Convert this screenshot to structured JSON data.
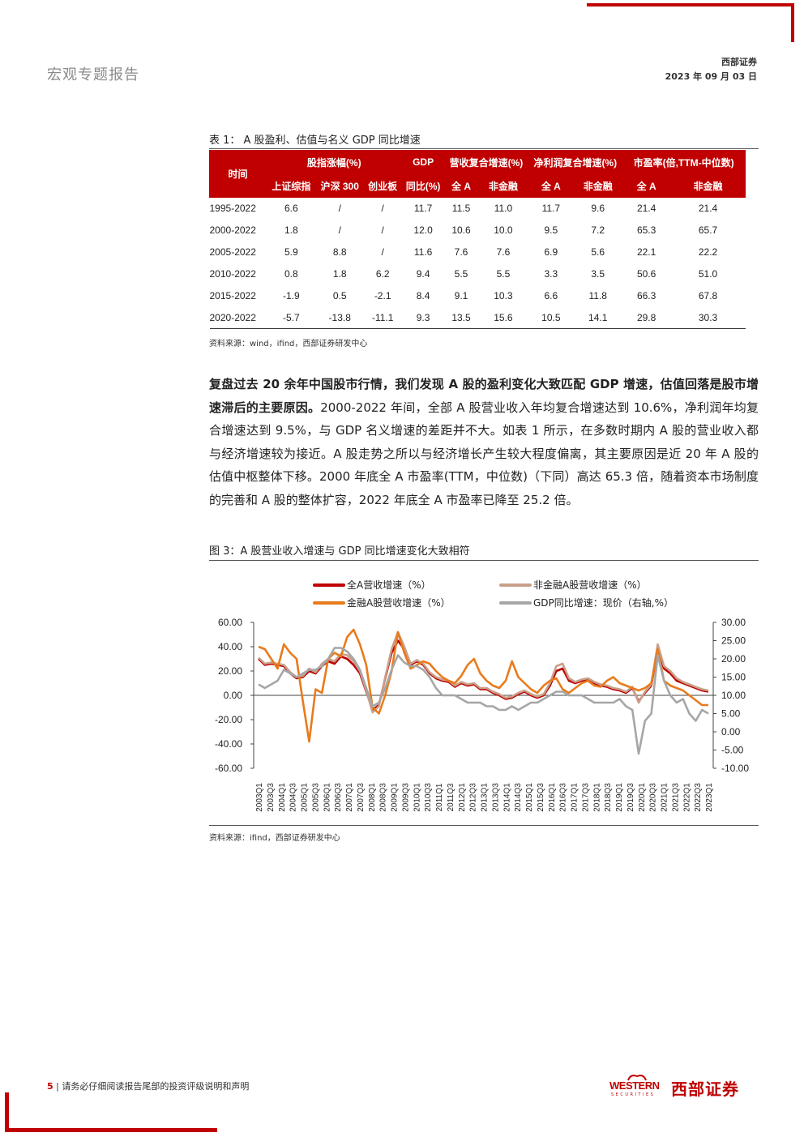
{
  "header": {
    "report_type": "宏观专题报告",
    "company": "西部证券",
    "date": "2023 年 09 月 03 日"
  },
  "table1": {
    "caption": "表 1：  A 股盈利、估值与名义 GDP 同比增速",
    "header_time": "时间",
    "group_headers": [
      "股指涨幅(%)",
      "GDP",
      "营收复合增速(%)",
      "净利润复合增速(%)",
      "市盈率(倍,TTM-中位数)"
    ],
    "sub_headers": [
      "上证综指",
      "沪深 300",
      "创业板",
      "同比(%)",
      "全 A",
      "非金融",
      "全 A",
      "非金融",
      "全 A",
      "非金融"
    ],
    "rows": [
      [
        "1995-2022",
        "6.6",
        "/",
        "/",
        "11.7",
        "11.5",
        "11.0",
        "11.7",
        "9.6",
        "21.4",
        "21.4"
      ],
      [
        "2000-2022",
        "1.8",
        "/",
        "/",
        "12.0",
        "10.6",
        "10.0",
        "9.5",
        "7.2",
        "65.3",
        "65.7"
      ],
      [
        "2005-2022",
        "5.9",
        "8.8",
        "/",
        "11.6",
        "7.6",
        "7.6",
        "6.9",
        "5.6",
        "22.1",
        "22.2"
      ],
      [
        "2010-2022",
        "0.8",
        "1.8",
        "6.2",
        "9.4",
        "5.5",
        "5.5",
        "3.3",
        "3.5",
        "50.6",
        "51.0"
      ],
      [
        "2015-2022",
        "-1.9",
        "0.5",
        "-2.1",
        "8.4",
        "9.1",
        "10.3",
        "6.6",
        "11.8",
        "66.3",
        "67.8"
      ],
      [
        "2020-2022",
        "-5.7",
        "-13.8",
        "-11.1",
        "9.3",
        "13.5",
        "15.6",
        "10.5",
        "14.1",
        "29.8",
        "30.3"
      ]
    ],
    "source": "资料来源：wind，ifind，西部证券研发中心"
  },
  "paragraph": {
    "bold": "复盘过去 20 余年中国股市行情，我们发现 A 股的盈利变化大致匹配 GDP 增速，估值回落是股市增速滞后的主要原因。",
    "rest": "2000-2022 年间，全部 A 股营业收入年均复合增速达到 10.6%，净利润年均复合增速达到 9.5%，与 GDP 名义增速的差距并不大。如表 1 所示，在多数时期内 A 股的营业收入都与经济增速较为接近。A 股走势之所以与经济增长产生较大程度偏离，其主要原因是近 20 年 A 股的估值中枢整体下移。2000 年底全 A 市盈率(TTM，中位数)（下同）高达 65.3 倍，随着资本市场制度的完善和 A 股的整体扩容，2022 年底全 A 市盈率已降至 25.2 倍。"
  },
  "figure3": {
    "caption": "图 3：A 股营业收入增速与 GDP 同比增速变化大致相符",
    "source": "资料来源：ifind，西部证券研发中心"
  },
  "chart_data": {
    "type": "line",
    "legend_placement": "top",
    "grid": false,
    "y_left": {
      "min": -60,
      "max": 60,
      "ticks": [
        "60.00",
        "40.00",
        "20.00",
        "0.00",
        "-20.00",
        "-40.00",
        "-60.00"
      ]
    },
    "y_right": {
      "min": -10,
      "max": 30,
      "ticks": [
        "30.00",
        "25.00",
        "20.00",
        "15.00",
        "10.00",
        "5.00",
        "0.00",
        "-5.00",
        "-10.00"
      ]
    },
    "x_labels": [
      "2003Q1",
      "2003Q3",
      "2004Q1",
      "2004Q3",
      "2005Q1",
      "2005Q3",
      "2006Q1",
      "2006Q3",
      "2007Q1",
      "2007Q3",
      "2008Q1",
      "2008Q3",
      "2009Q1",
      "2009Q3",
      "2010Q1",
      "2010Q3",
      "2011Q1",
      "2011Q3",
      "2012Q1",
      "2012Q3",
      "2013Q1",
      "2013Q3",
      "2014Q1",
      "2014Q3",
      "2015Q1",
      "2015Q3",
      "2016Q1",
      "2016Q3",
      "2017Q1",
      "2017Q3",
      "2018Q1",
      "2018Q3",
      "2019Q1",
      "2019Q3",
      "2020Q1",
      "2020Q3",
      "2021Q1",
      "2021Q3",
      "2022Q1",
      "2022Q3",
      "2023Q1"
    ],
    "series": [
      {
        "name": "全A营收增速（%）",
        "axis": "left",
        "color": "#c00000",
        "width": 2.6,
        "values": [
          30,
          25,
          26,
          25,
          24,
          18,
          14,
          15,
          20,
          18,
          24,
          28,
          26,
          32,
          30,
          25,
          18,
          3,
          -12,
          -8,
          14,
          35,
          45,
          38,
          25,
          28,
          25,
          18,
          14,
          12,
          11,
          7,
          10,
          8,
          9,
          5,
          5,
          2,
          0,
          -3,
          -2,
          1,
          3,
          0,
          -2,
          0,
          8,
          20,
          22,
          12,
          10,
          12,
          13,
          10,
          8,
          7,
          5,
          4,
          2,
          6,
          -5,
          2,
          8,
          38,
          22,
          18,
          12,
          10,
          8,
          6,
          4,
          3
        ]
      },
      {
        "name": "非金融A股营收增速（%）",
        "axis": "left",
        "color": "#c8a08a",
        "width": 2.6,
        "values": [
          31,
          26,
          27,
          26,
          25,
          19,
          15,
          16,
          22,
          19,
          26,
          30,
          28,
          34,
          33,
          28,
          20,
          4,
          -14,
          -9,
          15,
          38,
          52,
          40,
          26,
          29,
          26,
          19,
          15,
          13,
          12,
          8,
          11,
          9,
          10,
          6,
          6,
          3,
          1,
          -2,
          -1,
          2,
          4,
          1,
          -1,
          1,
          10,
          24,
          26,
          14,
          11,
          13,
          14,
          11,
          9,
          8,
          6,
          5,
          3,
          7,
          -6,
          3,
          9,
          42,
          24,
          20,
          14,
          11,
          9,
          7,
          5,
          4
        ]
      },
      {
        "name": "金融A股营收增速（%）",
        "axis": "left",
        "color": "#e87b1c",
        "width": 2.6,
        "values": [
          40,
          38,
          30,
          22,
          42,
          35,
          30,
          -5,
          -38,
          5,
          2,
          30,
          35,
          32,
          48,
          54,
          42,
          25,
          -10,
          -15,
          0,
          20,
          52,
          35,
          22,
          25,
          28,
          26,
          20,
          15,
          12,
          10,
          16,
          25,
          30,
          18,
          12,
          8,
          6,
          12,
          28,
          15,
          10,
          5,
          2,
          8,
          12,
          14,
          5,
          2,
          6,
          10,
          12,
          8,
          7,
          12,
          15,
          10,
          8,
          6,
          4,
          6,
          10,
          38,
          12,
          8,
          6,
          4,
          0,
          -4,
          -8,
          -8
        ]
      },
      {
        "name": "GDP同比增速：现价（右轴,%）",
        "axis": "right",
        "color": "#a6a6a6",
        "width": 2.6,
        "values": [
          13,
          12,
          13,
          14,
          17,
          16,
          15,
          16,
          17,
          17,
          18,
          20,
          23,
          23,
          22,
          20,
          17,
          12,
          7,
          8,
          12,
          17,
          21,
          19,
          18,
          18,
          17,
          15,
          12,
          10,
          10,
          10,
          9,
          8,
          8,
          8,
          7,
          7,
          6,
          6,
          7,
          6,
          7,
          8,
          8,
          9,
          10,
          11,
          11,
          10,
          10,
          10,
          9,
          8,
          8,
          8,
          8,
          9,
          7,
          6,
          -6,
          3,
          5,
          21,
          14,
          10,
          8,
          9,
          5,
          3,
          6,
          5
        ]
      }
    ]
  },
  "footer": {
    "page_number": "5",
    "disclaimer": "请务必仔细阅读报告尾部的投资评级说明和声明",
    "logo_en": "WESTERN",
    "logo_en_sub": "SECURITIES",
    "logo_cn": "西部证券"
  }
}
